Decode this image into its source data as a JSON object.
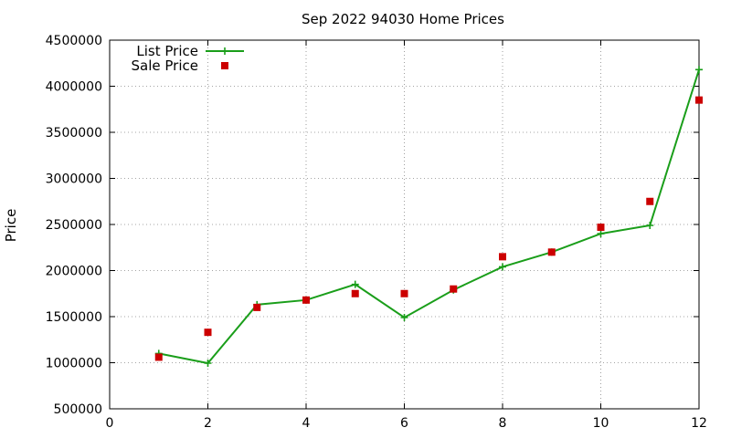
{
  "chart_data": {
    "type": "line",
    "title": "Sep 2022 94030 Home Prices",
    "xlabel": "",
    "ylabel": "Price",
    "xlim": [
      0,
      12
    ],
    "ylim": [
      500000,
      4500000
    ],
    "xticks": [
      0,
      2,
      4,
      6,
      8,
      10,
      12
    ],
    "yticks": [
      500000,
      1000000,
      1500000,
      2000000,
      2500000,
      3000000,
      3500000,
      4000000,
      4500000
    ],
    "grid": true,
    "legend_position": "top-left",
    "series": [
      {
        "name": "List Price",
        "style": "line-with-plus-markers",
        "color": "#1a9e1a",
        "x": [
          1,
          2,
          3,
          4,
          5,
          6,
          7,
          8,
          9,
          10,
          11,
          12
        ],
        "values": [
          1100000,
          995000,
          1630000,
          1680000,
          1850000,
          1490000,
          1790000,
          2040000,
          2200000,
          2400000,
          2490000,
          4180000
        ]
      },
      {
        "name": "Sale Price",
        "style": "square-markers",
        "color": "#cc0000",
        "x": [
          1,
          2,
          3,
          4,
          5,
          6,
          7,
          8,
          9,
          10,
          11,
          12
        ],
        "values": [
          1060000,
          1330000,
          1600000,
          1680000,
          1750000,
          1750000,
          1800000,
          2150000,
          2200000,
          2470000,
          2750000,
          3850000
        ]
      }
    ]
  }
}
